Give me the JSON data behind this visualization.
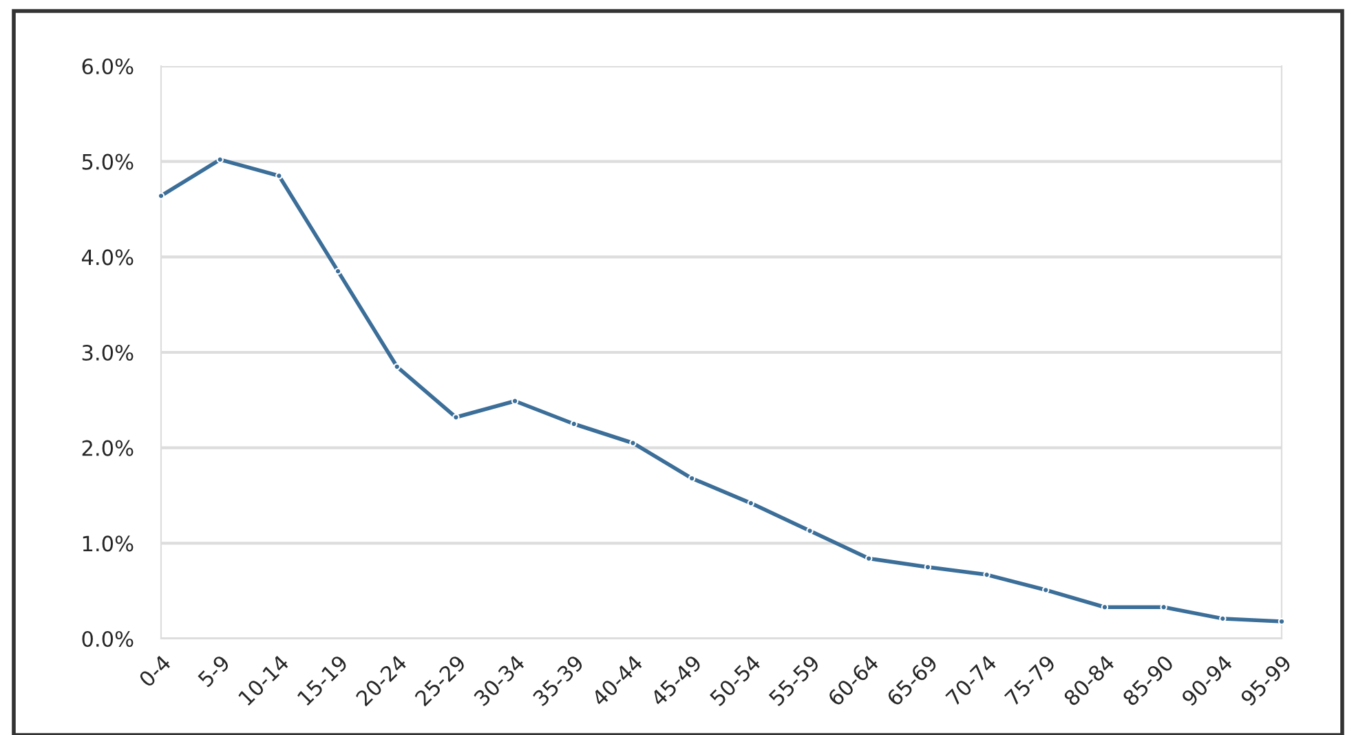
{
  "chart_data": {
    "type": "line",
    "categories": [
      "0-4",
      "5-9",
      "10-14",
      "15-19",
      "20-24",
      "25-29",
      "30-34",
      "35-39",
      "40-44",
      "45-49",
      "50-54",
      "55-59",
      "60-64",
      "65-69",
      "70-74",
      "75-79",
      "80-84",
      "85-90",
      "90-94",
      "95-99"
    ],
    "series": [
      {
        "color": "#3b6e98",
        "values": [
          4.64,
          5.02,
          4.85,
          3.85,
          2.85,
          2.32,
          2.49,
          2.25,
          2.05,
          1.68,
          1.42,
          1.13,
          0.84,
          0.75,
          0.67,
          0.51,
          0.33,
          0.33,
          0.21,
          0.18
        ]
      }
    ],
    "ylim": [
      0,
      6
    ],
    "yticks": [
      {
        "value": 0,
        "label": "0.0%"
      },
      {
        "value": 1,
        "label": "1.0%"
      },
      {
        "value": 2,
        "label": "2.0%"
      },
      {
        "value": 3,
        "label": "3.0%"
      },
      {
        "value": 4,
        "label": "4.0%"
      },
      {
        "value": 5,
        "label": "5.0%"
      },
      {
        "value": 6,
        "label": "6.0%"
      }
    ],
    "grid": "y",
    "marker": "circle",
    "line_style": "solid"
  }
}
